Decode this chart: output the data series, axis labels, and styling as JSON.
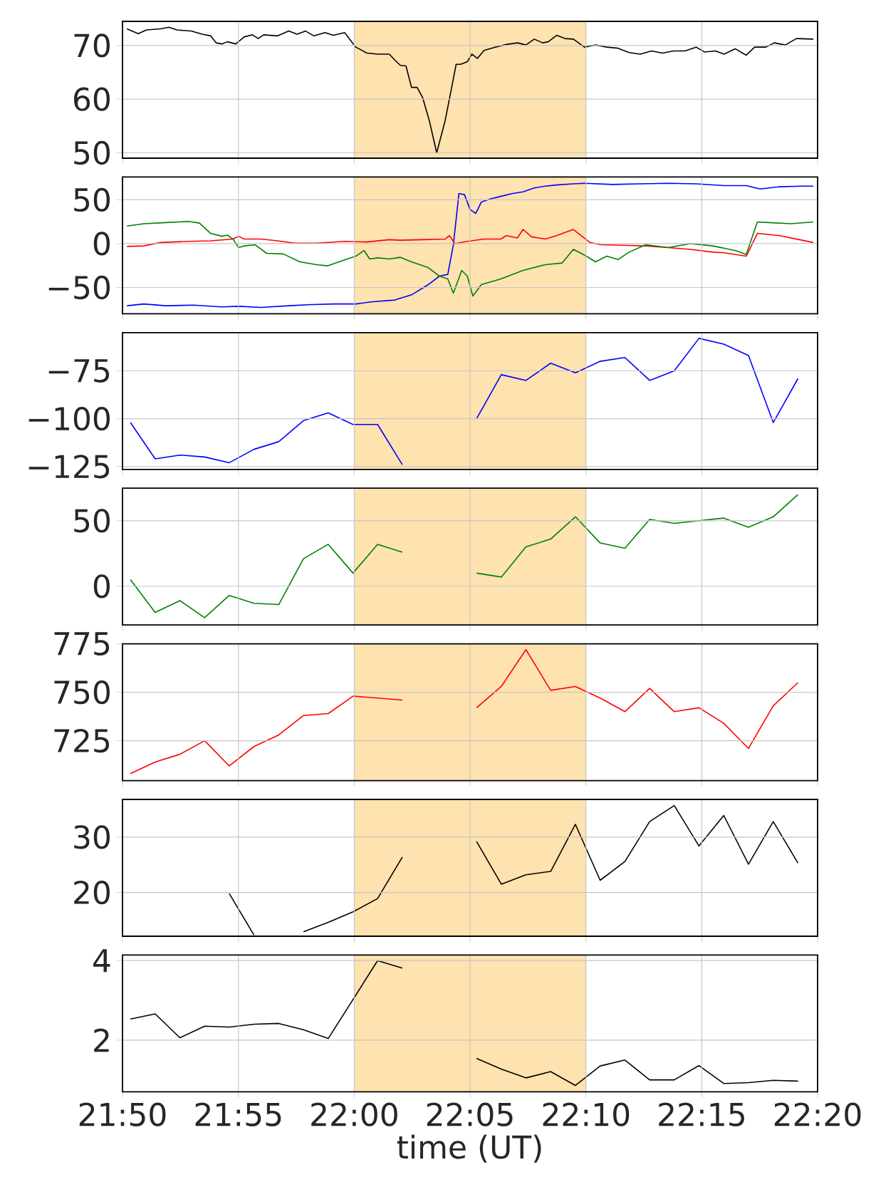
{
  "chart_data": [
    {
      "type": "line",
      "xlim": [
        21.8333,
        22.3333
      ],
      "tick_labels": "y",
      "grid": true,
      "marker": "none",
      "xticks": [
        {
          "value": 21.8333,
          "label": null
        },
        {
          "value": 21.9167,
          "label": null
        },
        {
          "value": 22.0,
          "label": null
        },
        {
          "value": 22.0833,
          "label": null
        },
        {
          "value": 22.1667,
          "label": null
        },
        {
          "value": 22.25,
          "label": null
        },
        {
          "value": 22.3333,
          "label": null
        }
      ],
      "ylim": [
        49,
        74.5
      ],
      "yticks": [
        50,
        60,
        70
      ],
      "bands": [
        {
          "axis": "x",
          "from": 22.0,
          "to": 22.1667,
          "color": "#fee2b0"
        }
      ],
      "series": [
        {
          "color": "#000000",
          "x": [
            21.8365,
            21.8446,
            21.8506,
            21.8606,
            21.8666,
            21.8726,
            21.8827,
            21.8907,
            21.8967,
            21.9007,
            21.9048,
            21.9088,
            21.9148,
            21.9208,
            21.9268,
            21.9309,
            21.9349,
            21.9449,
            21.9529,
            21.9589,
            21.965,
            21.971,
            21.979,
            21.985,
            21.9931,
            22.0011,
            22.0091,
            22.0171,
            22.0252,
            22.0292,
            22.0332,
            22.0372,
            22.0412,
            22.0452,
            22.0492,
            22.0541,
            22.0593,
            22.0653,
            22.0701,
            22.0733,
            22.0765,
            22.0814,
            22.0846,
            22.0886,
            22.0934,
            22.1014,
            22.1094,
            22.1175,
            22.1235,
            22.1295,
            22.1355,
            22.1395,
            22.1456,
            22.1516,
            22.1576,
            22.1656,
            22.1736,
            22.1817,
            22.1897,
            22.1977,
            22.2058,
            22.2138,
            22.2218,
            22.2298,
            22.2379,
            22.2459,
            22.2519,
            22.2599,
            22.266,
            22.274,
            22.282,
            22.288,
            22.2961,
            22.3021,
            22.3101,
            22.3181,
            22.3302
          ],
          "values": [
            73.1,
            72.2,
            72.9,
            73.1,
            73.4,
            72.9,
            72.7,
            72.1,
            71.8,
            70.5,
            70.3,
            70.7,
            70.3,
            71.6,
            72.0,
            71.3,
            72.0,
            71.8,
            72.7,
            72.1,
            72.7,
            71.8,
            72.4,
            71.9,
            72.4,
            69.7,
            68.6,
            68.4,
            68.4,
            67.3,
            66.3,
            66.2,
            62.2,
            62.2,
            60.3,
            55.9,
            50.0,
            55.9,
            62.2,
            66.5,
            66.5,
            67.0,
            68.4,
            67.6,
            69.1,
            69.7,
            70.2,
            70.5,
            70.1,
            71.2,
            70.5,
            70.7,
            71.9,
            71.3,
            71.2,
            69.7,
            70.1,
            69.7,
            69.5,
            68.7,
            68.4,
            69.0,
            68.6,
            69.0,
            69.0,
            69.7,
            68.8,
            69.0,
            68.4,
            69.4,
            68.2,
            69.7,
            69.7,
            70.5,
            70.1,
            71.3,
            71.2
          ]
        }
      ]
    },
    {
      "type": "line",
      "xlim": [
        21.8333,
        22.3333
      ],
      "tick_labels": "y",
      "grid": true,
      "marker": "none",
      "xticks": [
        {
          "value": 21.8333,
          "label": null
        },
        {
          "value": 21.9167,
          "label": null
        },
        {
          "value": 22.0,
          "label": null
        },
        {
          "value": 22.0833,
          "label": null
        },
        {
          "value": 22.1667,
          "label": null
        },
        {
          "value": 22.25,
          "label": null
        },
        {
          "value": 22.3333,
          "label": null
        }
      ],
      "ylim": [
        -80,
        76
      ],
      "yticks": [
        {
          "value": -50,
          "label": "−50"
        },
        0,
        50
      ],
      "bands": [
        {
          "axis": "x",
          "from": 22.0,
          "to": 22.1667,
          "color": "#fee2b0"
        }
      ],
      "series": [
        {
          "color": "#0000ff",
          "x": [
            21.8365,
            21.8486,
            21.8646,
            21.8847,
            21.9048,
            21.9168,
            21.9329,
            21.9529,
            21.969,
            21.985,
            22.0011,
            22.0131,
            22.0292,
            22.0412,
            22.0532,
            22.0613,
            22.0673,
            22.0713,
            22.0753,
            22.0793,
            22.0833,
            22.0874,
            22.0914,
            22.0974,
            22.1054,
            22.1134,
            22.1214,
            22.1295,
            22.1375,
            22.1455,
            22.1576,
            22.1656,
            22.1857,
            22.2057,
            22.2258,
            22.2459,
            22.266,
            22.282,
            22.292,
            22.3061,
            22.3221,
            22.3302
          ],
          "values": [
            -70.8,
            -68.8,
            -70.8,
            -70.1,
            -72.1,
            -71.4,
            -72.7,
            -70.8,
            -69.5,
            -68.8,
            -68.8,
            -66.2,
            -64.3,
            -58.4,
            -46.8,
            -37.0,
            -35.1,
            -1.3,
            57.1,
            55.9,
            39.0,
            34.4,
            47.4,
            50.7,
            53.9,
            57.1,
            59.1,
            63.6,
            65.6,
            66.9,
            68.2,
            68.8,
            67.5,
            68.2,
            68.8,
            68.2,
            66.2,
            66.2,
            62.3,
            64.9,
            65.6,
            65.6
          ]
        },
        {
          "color": "#ff0000",
          "x": [
            21.8365,
            21.8486,
            21.8606,
            21.8807,
            21.8967,
            21.9128,
            21.9168,
            21.9208,
            21.9329,
            21.9449,
            21.9569,
            21.973,
            21.993,
            22.0091,
            22.0251,
            22.0332,
            22.0492,
            22.0653,
            22.0685,
            22.0725,
            22.0813,
            22.0934,
            22.1054,
            22.1094,
            22.1174,
            22.1214,
            22.1275,
            22.1375,
            22.1455,
            22.1576,
            22.1696,
            22.1776,
            22.1937,
            22.2097,
            22.2258,
            22.2418,
            22.2579,
            22.2659,
            22.282,
            22.29,
            22.3061,
            22.3221,
            22.3301
          ],
          "values": [
            -3.2,
            -2.6,
            1.3,
            2.6,
            3.2,
            5.2,
            8.4,
            5.2,
            5.2,
            3.2,
            0.6,
            0.6,
            2.6,
            1.9,
            4.5,
            3.9,
            4.5,
            5.2,
            9.1,
            0,
            2.6,
            5.2,
            5.2,
            9.1,
            6.5,
            16.2,
            7.8,
            5.2,
            9.1,
            16.2,
            1.3,
            -1.3,
            -1.9,
            -2.6,
            -4.5,
            -6.5,
            -9.7,
            -10.4,
            -14.3,
            11.7,
            9.1,
            3.9,
            1.3
          ]
        },
        {
          "color": "#008000",
          "x": [
            21.8365,
            21.8486,
            21.8646,
            21.8807,
            21.8887,
            21.8967,
            21.9048,
            21.9088,
            21.9128,
            21.9168,
            21.9208,
            21.9288,
            21.9369,
            21.9489,
            21.9609,
            21.973,
            21.981,
            21.989,
            22.0011,
            22.0071,
            22.0111,
            22.0171,
            22.0251,
            22.0332,
            22.0412,
            22.0532,
            22.0613,
            22.0673,
            22.0713,
            22.0773,
            22.0813,
            22.0853,
            22.0914,
            22.1054,
            22.1214,
            22.1375,
            22.1495,
            22.1576,
            22.1656,
            22.1736,
            22.1816,
            22.1897,
            22.1977,
            22.2097,
            22.2258,
            22.2418,
            22.2579,
            22.2739,
            22.282,
            22.29,
            22.298,
            22.3141,
            22.3301
          ],
          "values": [
            20.1,
            22.7,
            24.0,
            25.3,
            23.4,
            11.7,
            8.4,
            9.7,
            5.2,
            -4.5,
            -2.6,
            -1.3,
            -11.0,
            -11.7,
            -20.8,
            -24.0,
            -25.3,
            -20.8,
            -14.3,
            -7.8,
            -17.5,
            -16.2,
            -17.5,
            -15.6,
            -20.8,
            -27.3,
            -37.0,
            -40.3,
            -56.5,
            -30.5,
            -37.0,
            -59.7,
            -46.8,
            -40.3,
            -30.5,
            -24.0,
            -22.1,
            -6.5,
            -13.0,
            -20.8,
            -14.3,
            -18.2,
            -9.7,
            -1.3,
            -4.5,
            0,
            -2.6,
            -7.8,
            -12.3,
            24.7,
            24.0,
            22.7,
            24.7
          ]
        }
      ]
    },
    {
      "type": "line",
      "xlim": [
        21.8333,
        22.3333
      ],
      "tick_labels": "y",
      "grid": true,
      "marker": "none",
      "xticks": [
        {
          "value": 21.8333,
          "label": null
        },
        {
          "value": 21.9167,
          "label": null
        },
        {
          "value": 22.0,
          "label": null
        },
        {
          "value": 22.0833,
          "label": null
        },
        {
          "value": 22.1667,
          "label": null
        },
        {
          "value": 22.25,
          "label": null
        },
        {
          "value": 22.3333,
          "label": null
        }
      ],
      "ylim": [
        -126.5,
        -55
      ],
      "yticks": [
        {
          "value": -125,
          "label": "−125"
        },
        {
          "value": -100,
          "label": "−100"
        },
        {
          "value": -75,
          "label": "−75"
        }
      ],
      "bands": [
        {
          "axis": "x",
          "from": 22.0,
          "to": 22.1667,
          "color": "#fee2b0"
        }
      ],
      "x": [
        21.839,
        21.8568,
        21.8746,
        21.8924,
        21.9101,
        21.9279,
        21.9457,
        21.9635,
        21.9813,
        21.9991,
        22.0168,
        22.0346,
        22.0524,
        22.0702,
        22.088,
        22.1058,
        22.1235,
        22.1413,
        22.1591,
        22.1769,
        22.1947,
        22.2125,
        22.2302,
        22.248,
        22.2658,
        22.2836,
        22.3014,
        22.3192
      ],
      "series": [
        {
          "color": "#0000ff",
          "values": [
            -102,
            -121,
            -119,
            -120,
            -123,
            -116,
            -112,
            -101,
            -97,
            -103,
            -103,
            -124,
            null,
            null,
            -100,
            -77,
            -80,
            -71,
            -76,
            -70,
            -68,
            -80,
            -75,
            -58,
            -61,
            -67,
            -102,
            -79
          ]
        }
      ]
    },
    {
      "type": "line",
      "xlim": [
        21.8333,
        22.3333
      ],
      "tick_labels": "y",
      "grid": true,
      "marker": "none",
      "xticks": [
        {
          "value": 21.8333,
          "label": null
        },
        {
          "value": 21.9167,
          "label": null
        },
        {
          "value": 22.0,
          "label": null
        },
        {
          "value": 22.0833,
          "label": null
        },
        {
          "value": 22.1667,
          "label": null
        },
        {
          "value": 22.25,
          "label": null
        },
        {
          "value": 22.3333,
          "label": null
        }
      ],
      "ylim": [
        -29.6,
        74.8
      ],
      "yticks": [
        0,
        50
      ],
      "bands": [
        {
          "axis": "x",
          "from": 22.0,
          "to": 22.1667,
          "color": "#fee2b0"
        }
      ],
      "x": [
        21.839,
        21.8568,
        21.8746,
        21.8924,
        21.9101,
        21.9279,
        21.9457,
        21.9635,
        21.9813,
        21.9991,
        22.0168,
        22.0346,
        22.0524,
        22.0702,
        22.088,
        22.1058,
        22.1235,
        22.1413,
        22.1591,
        22.1769,
        22.1947,
        22.2125,
        22.2302,
        22.248,
        22.2658,
        22.2836,
        22.3014,
        22.3192
      ],
      "series": [
        {
          "color": "#008000",
          "values": [
            5,
            -20,
            -11,
            -24,
            -7,
            -13,
            -14,
            21,
            32,
            10,
            32,
            26,
            null,
            null,
            10,
            7,
            30,
            36,
            53,
            33,
            29,
            51,
            48,
            50,
            52,
            45,
            53,
            70
          ]
        }
      ]
    },
    {
      "type": "line",
      "xlim": [
        21.8333,
        22.3333
      ],
      "tick_labels": "y",
      "grid": true,
      "marker": "none",
      "xticks": [
        {
          "value": 21.8333,
          "label": null
        },
        {
          "value": 21.9167,
          "label": null
        },
        {
          "value": 22.0,
          "label": null
        },
        {
          "value": 22.0833,
          "label": null
        },
        {
          "value": 22.1667,
          "label": null
        },
        {
          "value": 22.25,
          "label": null
        },
        {
          "value": 22.3333,
          "label": null
        }
      ],
      "ylim": [
        704.4,
        775
      ],
      "yticks": [
        725,
        750,
        775
      ],
      "bands": [
        {
          "axis": "x",
          "from": 22.0,
          "to": 22.1667,
          "color": "#fee2b0"
        }
      ],
      "x": [
        21.839,
        21.8568,
        21.8746,
        21.8924,
        21.9101,
        21.9279,
        21.9457,
        21.9635,
        21.9813,
        21.9991,
        22.0168,
        22.0346,
        22.0524,
        22.0702,
        22.088,
        22.1058,
        22.1235,
        22.1413,
        22.1591,
        22.1769,
        22.1947,
        22.2125,
        22.2302,
        22.248,
        22.2658,
        22.2836,
        22.3014,
        22.3192
      ],
      "series": [
        {
          "color": "#ff0000",
          "values": [
            708,
            714,
            718,
            725,
            712,
            722,
            728,
            738,
            739,
            748,
            747,
            746,
            null,
            null,
            742,
            753,
            772,
            751,
            753,
            747,
            740,
            752,
            740,
            742,
            734,
            721,
            743,
            755
          ]
        }
      ]
    },
    {
      "type": "line",
      "xlim": [
        21.8333,
        22.3333
      ],
      "tick_labels": "y",
      "grid": true,
      "marker": "none",
      "xticks": [
        {
          "value": 21.8333,
          "label": null
        },
        {
          "value": 21.9167,
          "label": null
        },
        {
          "value": 22.0,
          "label": null
        },
        {
          "value": 22.0833,
          "label": null
        },
        {
          "value": 22.1667,
          "label": null
        },
        {
          "value": 22.25,
          "label": null
        },
        {
          "value": 22.3333,
          "label": null
        }
      ],
      "ylim": [
        12.1,
        36.8
      ],
      "yticks": [
        20,
        30
      ],
      "bands": [
        {
          "axis": "x",
          "from": 22.0,
          "to": 22.1667,
          "color": "#fee2b0"
        }
      ],
      "series": [
        {
          "color": "#000000",
          "x": [
            21.9101,
            21.9279,
            21.9457,
            21.9635,
            21.9813,
            21.9991,
            22.0168,
            22.0346,
            22.0524,
            22.0702,
            22.088,
            22.1058,
            22.1235,
            22.1413,
            22.1591,
            22.1769,
            22.1947,
            22.2125,
            22.2302,
            22.248,
            22.2658,
            22.2836,
            22.3014,
            22.3192
          ],
          "values": [
            19.8,
            12.3,
            null,
            12.9,
            14.6,
            16.5,
            18.9,
            26.4,
            null,
            null,
            29.2,
            21.5,
            23.2,
            23.8,
            32.3,
            22.2,
            25.6,
            32.8,
            35.7,
            28.4,
            33.9,
            25.1,
            32.8,
            25.3
          ]
        }
      ]
    },
    {
      "type": "line",
      "xlim": [
        21.8333,
        22.3333
      ],
      "grid": true,
      "marker": "none",
      "xlabel": "time (UT)",
      "xticks": [
        {
          "value": 21.8333,
          "label": "21:50"
        },
        {
          "value": 21.9167,
          "label": "21:55"
        },
        {
          "value": 22.0,
          "label": "22:00"
        },
        {
          "value": 22.0833,
          "label": "22:05"
        },
        {
          "value": 22.1667,
          "label": "22:10"
        },
        {
          "value": 22.25,
          "label": "22:15"
        },
        {
          "value": 22.3333,
          "label": "22:20"
        }
      ],
      "ylim": [
        0.7,
        4.14
      ],
      "yticks": [
        2,
        4
      ],
      "bands": [
        {
          "axis": "x",
          "from": 22.0,
          "to": 22.1667,
          "color": "#fee2b0"
        }
      ],
      "x": [
        21.839,
        21.8568,
        21.8746,
        21.8924,
        21.9101,
        21.9279,
        21.9457,
        21.9635,
        21.9813,
        21.9991,
        22.0168,
        22.0346,
        22.0524,
        22.0702,
        22.088,
        22.1058,
        22.1235,
        22.1413,
        22.1591,
        22.1769,
        22.1947,
        22.2125,
        22.2302,
        22.248,
        22.2658,
        22.2836,
        22.3014,
        22.3192
      ],
      "series": [
        {
          "color": "#000000",
          "values": [
            2.53,
            2.66,
            2.06,
            2.35,
            2.33,
            2.4,
            2.42,
            2.26,
            2.04,
            3.02,
            4.0,
            3.81,
            null,
            null,
            1.54,
            1.27,
            1.05,
            1.21,
            0.86,
            1.35,
            1.5,
            1.0,
            1.0,
            1.36,
            0.91,
            0.93,
            0.99,
            0.97
          ]
        }
      ]
    }
  ]
}
